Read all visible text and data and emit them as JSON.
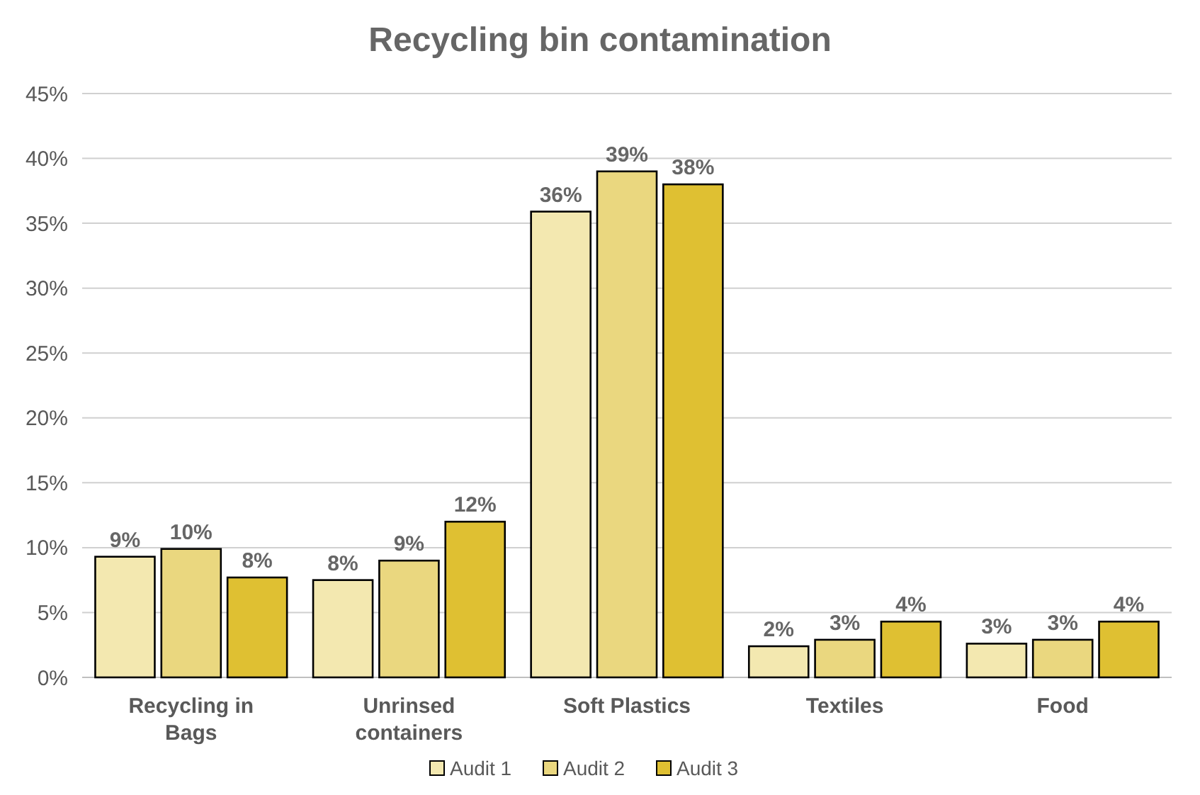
{
  "chart_data": {
    "type": "bar",
    "title": "Recycling bin contamination",
    "categories": [
      "Recycling in Bags",
      "Unrinsed containers",
      "Soft Plastics",
      "Textiles",
      "Food"
    ],
    "series": [
      {
        "name": "Audit 1",
        "color": "#f3e8b0",
        "values": [
          9.3,
          7.5,
          35.9,
          2.4,
          2.6
        ],
        "value_labels": [
          "9%",
          "8%",
          "36%",
          "2%",
          "3%"
        ]
      },
      {
        "name": "Audit 2",
        "color": "#ead77f",
        "values": [
          9.9,
          9.0,
          39.0,
          2.9,
          2.9
        ],
        "value_labels": [
          "10%",
          "9%",
          "39%",
          "3%",
          "3%"
        ]
      },
      {
        "name": "Audit 3",
        "color": "#dfc032",
        "values": [
          7.7,
          12.0,
          38.0,
          4.3,
          4.3
        ],
        "value_labels": [
          "8%",
          "12%",
          "38%",
          "4%",
          "4%"
        ]
      }
    ],
    "ylim": [
      0,
      45
    ],
    "yticks": [
      {
        "value": 0,
        "label": "0%"
      },
      {
        "value": 5,
        "label": "5%"
      },
      {
        "value": 10,
        "label": "10%"
      },
      {
        "value": 15,
        "label": "15%"
      },
      {
        "value": 20,
        "label": "20%"
      },
      {
        "value": 25,
        "label": "25%"
      },
      {
        "value": 30,
        "label": "30%"
      },
      {
        "value": 35,
        "label": "35%"
      },
      {
        "value": 40,
        "label": "40%"
      },
      {
        "value": 45,
        "label": "45%"
      }
    ],
    "grid": "y",
    "legend": "bottom"
  }
}
